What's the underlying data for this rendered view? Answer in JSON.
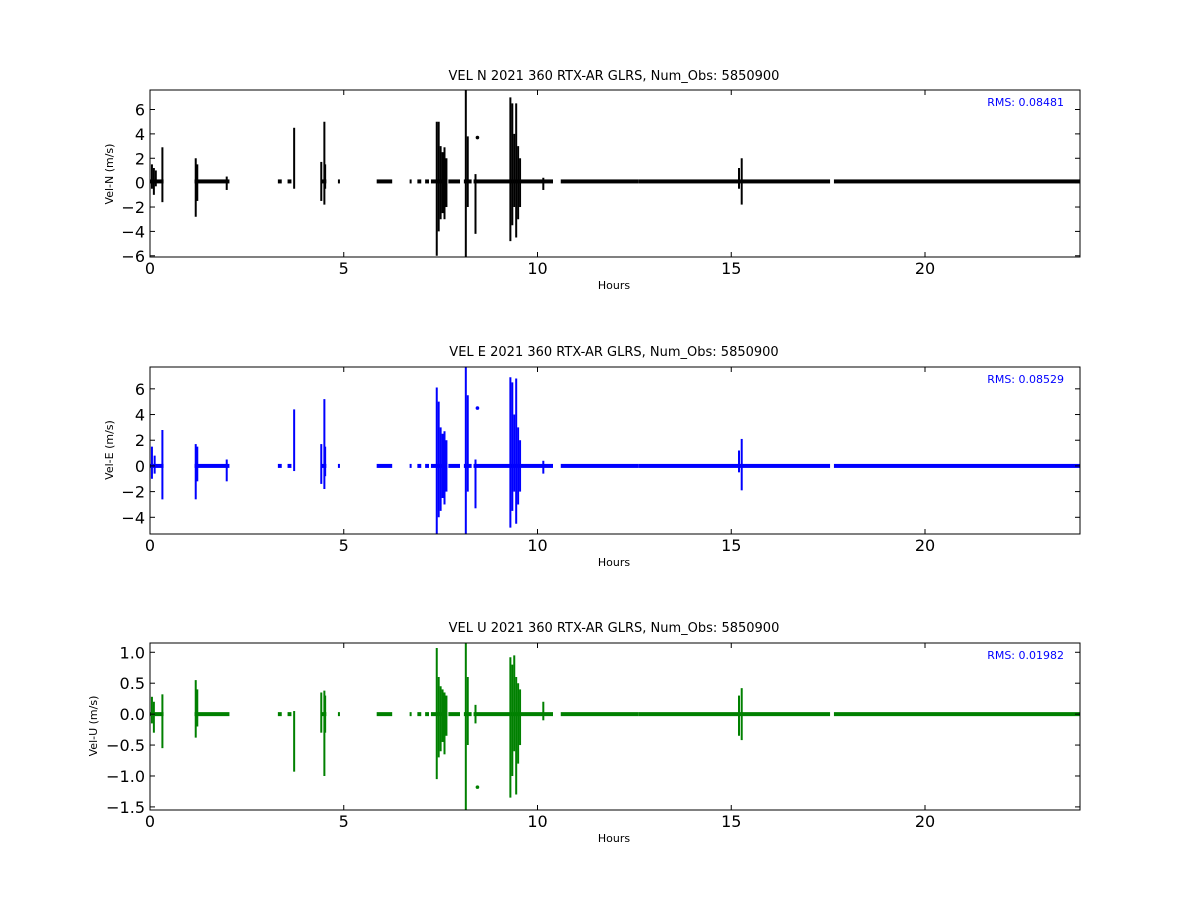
{
  "chart_data": [
    {
      "type": "line",
      "title": "VEL N 2021 360 RTX-AR  GLRS, Num_Obs: 5850900",
      "xlabel": "Hours",
      "ylabel": "Vel-N (m/s)",
      "xlim": [
        0,
        24
      ],
      "ylim": [
        -6.1,
        7.6
      ],
      "xticks": [
        0,
        5,
        10,
        15,
        20
      ],
      "yticks": [
        -6,
        -4,
        -2,
        0,
        2,
        4,
        6
      ],
      "ytick_labels": [
        "−6",
        "−4",
        "−2",
        "0",
        "2",
        "4",
        "6"
      ],
      "color": "#000000",
      "rms_label": "RMS:  0.08481",
      "series": [
        {
          "baseline": 0.1,
          "segments": [
            [
              0.0,
              0.35
            ],
            [
              1.15,
              2.05
            ],
            [
              3.3,
              3.4
            ],
            [
              3.55,
              3.65
            ],
            [
              4.4,
              4.55
            ],
            [
              4.85,
              4.9
            ],
            [
              5.85,
              6.25
            ],
            [
              6.7,
              6.75
            ],
            [
              6.9,
              7.0
            ],
            [
              7.1,
              7.2
            ],
            [
              7.25,
              7.55
            ],
            [
              7.6,
              7.65
            ],
            [
              7.7,
              8.0
            ],
            [
              8.1,
              8.3
            ],
            [
              8.35,
              9.2
            ],
            [
              9.2,
              9.6
            ],
            [
              9.6,
              10.4
            ],
            [
              10.6,
              12.6
            ],
            [
              12.6,
              17.55
            ],
            [
              17.65,
              24.0
            ]
          ],
          "spikes": [
            [
              0.05,
              -0.5,
              1.5
            ],
            [
              0.1,
              -1.0,
              1.2
            ],
            [
              0.15,
              -0.3,
              1.0
            ],
            [
              0.32,
              -1.6,
              2.9
            ],
            [
              1.18,
              -2.8,
              2.0
            ],
            [
              1.22,
              -1.5,
              1.5
            ],
            [
              1.98,
              -0.6,
              0.5
            ],
            [
              3.72,
              -0.5,
              4.5
            ],
            [
              4.42,
              -1.5,
              1.7
            ],
            [
              4.5,
              -1.8,
              5.0
            ],
            [
              4.52,
              -0.5,
              1.5
            ],
            [
              7.4,
              -6.0,
              5.0
            ],
            [
              7.45,
              -4.0,
              5.0
            ],
            [
              7.5,
              -3.0,
              3.0
            ],
            [
              7.55,
              -2.5,
              2.5
            ],
            [
              7.6,
              -3.0,
              2.9
            ],
            [
              7.65,
              -2.0,
              2.0
            ],
            [
              8.15,
              -6.1,
              7.6
            ],
            [
              8.2,
              -2.0,
              3.8
            ],
            [
              8.4,
              -4.2,
              0.7
            ],
            [
              9.3,
              -4.8,
              7.0
            ],
            [
              9.35,
              -3.5,
              6.5
            ],
            [
              9.4,
              -2.0,
              4.0
            ],
            [
              9.45,
              -4.5,
              6.5
            ],
            [
              9.5,
              -3.0,
              3.0
            ],
            [
              9.55,
              -2.0,
              2.0
            ],
            [
              10.15,
              -0.6,
              0.4
            ],
            [
              15.2,
              -0.5,
              1.2
            ],
            [
              15.27,
              -1.8,
              2.0
            ]
          ],
          "dots": [
            [
              8.45,
              3.7
            ]
          ]
        }
      ]
    },
    {
      "type": "line",
      "title": "VEL E 2021 360 RTX-AR  GLRS, Num_Obs: 5850900",
      "xlabel": "Hours",
      "ylabel": "Vel-E (m/s)",
      "xlim": [
        0,
        24
      ],
      "ylim": [
        -5.3,
        7.7
      ],
      "xticks": [
        0,
        5,
        10,
        15,
        20
      ],
      "yticks": [
        -4,
        -2,
        0,
        2,
        4,
        6
      ],
      "ytick_labels": [
        "−4",
        "−2",
        "0",
        "2",
        "4",
        "6"
      ],
      "color": "#0000ff",
      "rms_label": "RMS:  0.08529",
      "series": [
        {
          "baseline": 0.0,
          "segments": [
            [
              0.0,
              0.35
            ],
            [
              1.15,
              2.05
            ],
            [
              3.3,
              3.4
            ],
            [
              3.55,
              3.65
            ],
            [
              4.4,
              4.55
            ],
            [
              4.85,
              4.9
            ],
            [
              5.85,
              6.25
            ],
            [
              6.7,
              6.75
            ],
            [
              6.9,
              7.0
            ],
            [
              7.1,
              7.2
            ],
            [
              7.25,
              7.55
            ],
            [
              7.6,
              7.65
            ],
            [
              7.7,
              8.0
            ],
            [
              8.1,
              8.3
            ],
            [
              8.35,
              9.2
            ],
            [
              9.2,
              9.6
            ],
            [
              9.6,
              10.4
            ],
            [
              10.6,
              12.6
            ],
            [
              12.6,
              17.55
            ],
            [
              17.65,
              24.0
            ]
          ],
          "spikes": [
            [
              0.05,
              -1.0,
              1.5
            ],
            [
              0.12,
              -0.6,
              0.8
            ],
            [
              0.32,
              -2.6,
              2.8
            ],
            [
              1.18,
              -2.6,
              1.7
            ],
            [
              1.22,
              -1.2,
              1.5
            ],
            [
              1.98,
              -1.2,
              0.5
            ],
            [
              3.72,
              -0.4,
              4.4
            ],
            [
              4.42,
              -1.4,
              1.7
            ],
            [
              4.5,
              -1.8,
              5.2
            ],
            [
              4.52,
              -0.8,
              1.5
            ],
            [
              7.4,
              -5.3,
              6.1
            ],
            [
              7.45,
              -4.0,
              5.0
            ],
            [
              7.5,
              -3.5,
              3.0
            ],
            [
              7.55,
              -2.5,
              2.5
            ],
            [
              7.6,
              -3.0,
              2.7
            ],
            [
              7.65,
              -2.0,
              2.0
            ],
            [
              8.15,
              -5.3,
              7.7
            ],
            [
              8.2,
              -2.0,
              5.5
            ],
            [
              8.4,
              -3.3,
              0.5
            ],
            [
              9.3,
              -4.8,
              6.9
            ],
            [
              9.35,
              -3.5,
              6.5
            ],
            [
              9.4,
              -2.0,
              4.0
            ],
            [
              9.45,
              -4.5,
              6.8
            ],
            [
              9.5,
              -3.0,
              3.0
            ],
            [
              9.55,
              -2.0,
              2.0
            ],
            [
              10.15,
              -0.6,
              0.4
            ],
            [
              15.2,
              -0.5,
              1.2
            ],
            [
              15.27,
              -1.9,
              2.1
            ]
          ],
          "dots": [
            [
              8.45,
              4.5
            ]
          ]
        }
      ]
    },
    {
      "type": "line",
      "title": "VEL U 2021 360 RTX-AR  GLRS, Num_Obs: 5850900",
      "xlabel": "Hours",
      "ylabel": "Vel-U (m/s)",
      "xlim": [
        0,
        24
      ],
      "ylim": [
        -1.55,
        1.15
      ],
      "xticks": [
        0,
        5,
        10,
        15,
        20
      ],
      "yticks": [
        -1.5,
        -1.0,
        -0.5,
        0.0,
        0.5,
        1.0
      ],
      "ytick_labels": [
        "−1.5",
        "−1.0",
        "−0.5",
        "0.0",
        "0.5",
        "1.0"
      ],
      "color": "#008000",
      "rms_label": "RMS:  0.01982",
      "series": [
        {
          "baseline": 0.0,
          "segments": [
            [
              0.0,
              0.35
            ],
            [
              1.15,
              2.05
            ],
            [
              3.3,
              3.4
            ],
            [
              3.55,
              3.65
            ],
            [
              4.4,
              4.55
            ],
            [
              4.85,
              4.9
            ],
            [
              5.85,
              6.25
            ],
            [
              6.7,
              6.75
            ],
            [
              6.9,
              7.0
            ],
            [
              7.1,
              7.2
            ],
            [
              7.25,
              7.55
            ],
            [
              7.6,
              7.65
            ],
            [
              7.7,
              8.0
            ],
            [
              8.1,
              8.3
            ],
            [
              8.35,
              9.2
            ],
            [
              9.2,
              9.6
            ],
            [
              9.6,
              10.4
            ],
            [
              10.6,
              12.6
            ],
            [
              12.6,
              17.55
            ],
            [
              17.65,
              24.0
            ]
          ],
          "spikes": [
            [
              0.05,
              -0.15,
              0.28
            ],
            [
              0.1,
              -0.3,
              0.2
            ],
            [
              0.32,
              -0.55,
              0.32
            ],
            [
              1.18,
              -0.38,
              0.55
            ],
            [
              1.22,
              -0.2,
              0.4
            ],
            [
              3.72,
              -0.93,
              0.05
            ],
            [
              4.42,
              -0.3,
              0.35
            ],
            [
              4.5,
              -1.0,
              0.38
            ],
            [
              4.52,
              -0.3,
              0.3
            ],
            [
              7.4,
              -1.05,
              1.07
            ],
            [
              7.45,
              -0.7,
              0.6
            ],
            [
              7.5,
              -0.6,
              0.45
            ],
            [
              7.55,
              -0.45,
              0.4
            ],
            [
              7.6,
              -0.65,
              0.35
            ],
            [
              7.65,
              -0.35,
              0.3
            ],
            [
              8.15,
              -1.55,
              1.15
            ],
            [
              8.2,
              -0.5,
              0.6
            ],
            [
              8.4,
              -0.15,
              0.15
            ],
            [
              9.3,
              -1.35,
              0.92
            ],
            [
              9.35,
              -1.0,
              0.8
            ],
            [
              9.4,
              -0.6,
              0.95
            ],
            [
              9.45,
              -1.3,
              0.6
            ],
            [
              9.5,
              -0.8,
              0.5
            ],
            [
              9.55,
              -0.5,
              0.4
            ],
            [
              10.15,
              -0.1,
              0.2
            ],
            [
              15.2,
              -0.35,
              0.3
            ],
            [
              15.27,
              -0.42,
              0.42
            ]
          ],
          "dots": [
            [
              8.45,
              -1.18
            ]
          ]
        }
      ]
    }
  ]
}
